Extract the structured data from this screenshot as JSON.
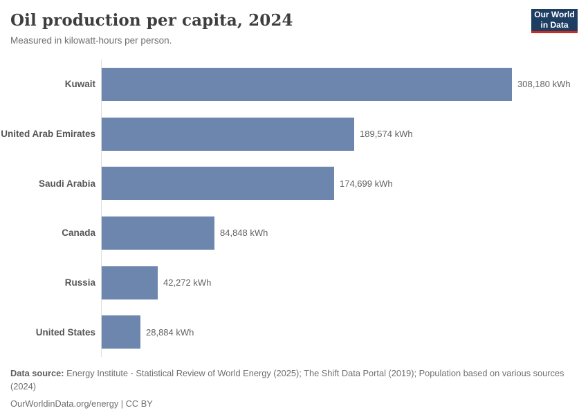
{
  "header": {
    "title": "Oil production per capita, 2024",
    "subtitle": "Measured in kilowatt-hours per person.",
    "logo": {
      "line1": "Our World",
      "line2": "in Data"
    }
  },
  "chart_data": {
    "type": "bar",
    "orientation": "horizontal",
    "title": "Oil production per capita, 2024",
    "unit": "kWh",
    "categories": [
      "Kuwait",
      "United Arab Emirates",
      "Saudi Arabia",
      "Canada",
      "Russia",
      "United States"
    ],
    "values": [
      308180,
      189574,
      174699,
      84848,
      42272,
      28884
    ],
    "value_labels": [
      "308,180 kWh",
      "189,574 kWh",
      "174,699 kWh",
      "84,848 kWh",
      "42,272 kWh",
      "28,884 kWh"
    ],
    "xlim": [
      0,
      308180
    ],
    "grid": false,
    "legend": "none",
    "bar_color": "#6c86ae",
    "axis_color": "#dcdcdc"
  },
  "footer": {
    "source_label": "Data source:",
    "source_text": " Energy Institute - Statistical Review of World Energy (2025); The Shift Data Portal (2019); Population based on various sources (2024)",
    "link_line": "OurWorldinData.org/energy | CC BY"
  },
  "colors": {
    "bar": "#6c86ae",
    "axis": "#dcdcdc",
    "title_text": "#3e3e3e",
    "muted_text": "#6e6e6e",
    "entity_label": "#555555",
    "value_label": "#616161",
    "logo_background": "#1d3d63",
    "logo_underline": "#cf2a1c"
  }
}
